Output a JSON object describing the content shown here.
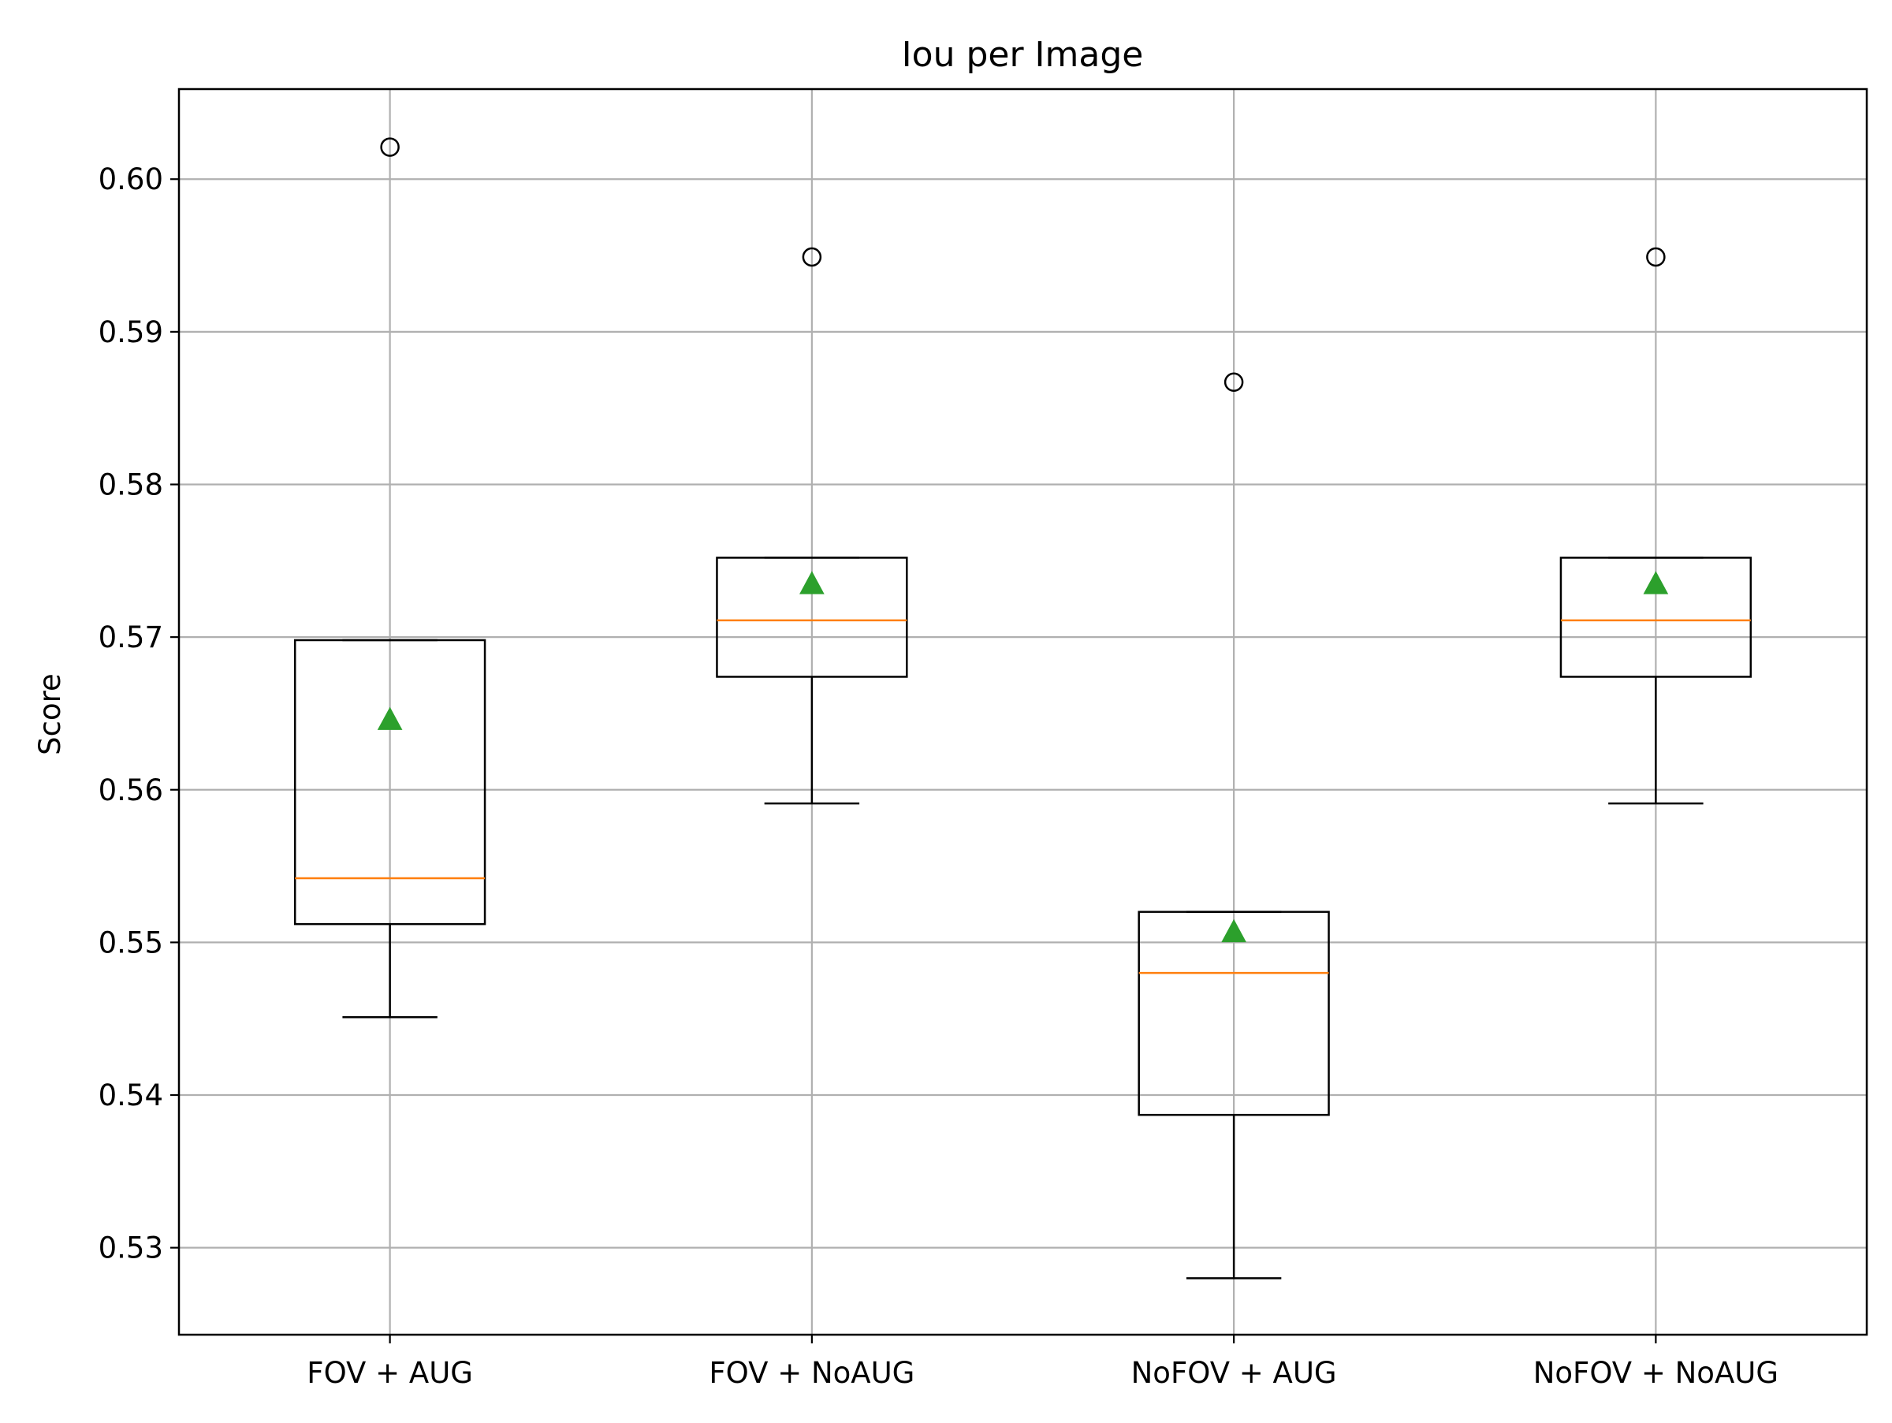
{
  "chart_data": {
    "type": "box",
    "title": "Iou per Image",
    "xlabel": "",
    "ylabel": "Score",
    "ylim": [
      0.5243,
      0.6059
    ],
    "y_ticks": [
      0.53,
      0.54,
      0.55,
      0.56,
      0.57,
      0.58,
      0.59,
      0.6
    ],
    "y_tick_labels": [
      "0.53",
      "0.54",
      "0.55",
      "0.56",
      "0.57",
      "0.58",
      "0.59",
      "0.60"
    ],
    "grid": true,
    "categories": [
      "FOV + AUG",
      "FOV + NoAUG",
      "NoFOV + AUG",
      "NoFOV + NoAUG"
    ],
    "boxes": [
      {
        "category": "FOV + AUG",
        "whisker_low": 0.5451,
        "q1": 0.5512,
        "median": 0.5542,
        "q3": 0.5698,
        "whisker_high": 0.5698,
        "mean": 0.5646,
        "outliers": [
          0.6021
        ]
      },
      {
        "category": "FOV + NoAUG",
        "whisker_low": 0.5591,
        "q1": 0.5674,
        "median": 0.5711,
        "q3": 0.5752,
        "whisker_high": 0.5752,
        "mean": 0.5735,
        "outliers": [
          0.5949
        ]
      },
      {
        "category": "NoFOV + AUG",
        "whisker_low": 0.528,
        "q1": 0.5387,
        "median": 0.548,
        "q3": 0.552,
        "whisker_high": 0.552,
        "mean": 0.5507,
        "outliers": [
          0.5867
        ]
      },
      {
        "category": "NoFOV + NoAUG",
        "whisker_low": 0.5591,
        "q1": 0.5674,
        "median": 0.5711,
        "q3": 0.5752,
        "whisker_high": 0.5752,
        "mean": 0.5735,
        "outliers": [
          0.5949
        ]
      }
    ],
    "colors": {
      "box": "#000000",
      "median": "#ff7f0e",
      "mean": "#2ca02c",
      "grid": "#b0b0b0",
      "outlier": "#000000"
    }
  }
}
